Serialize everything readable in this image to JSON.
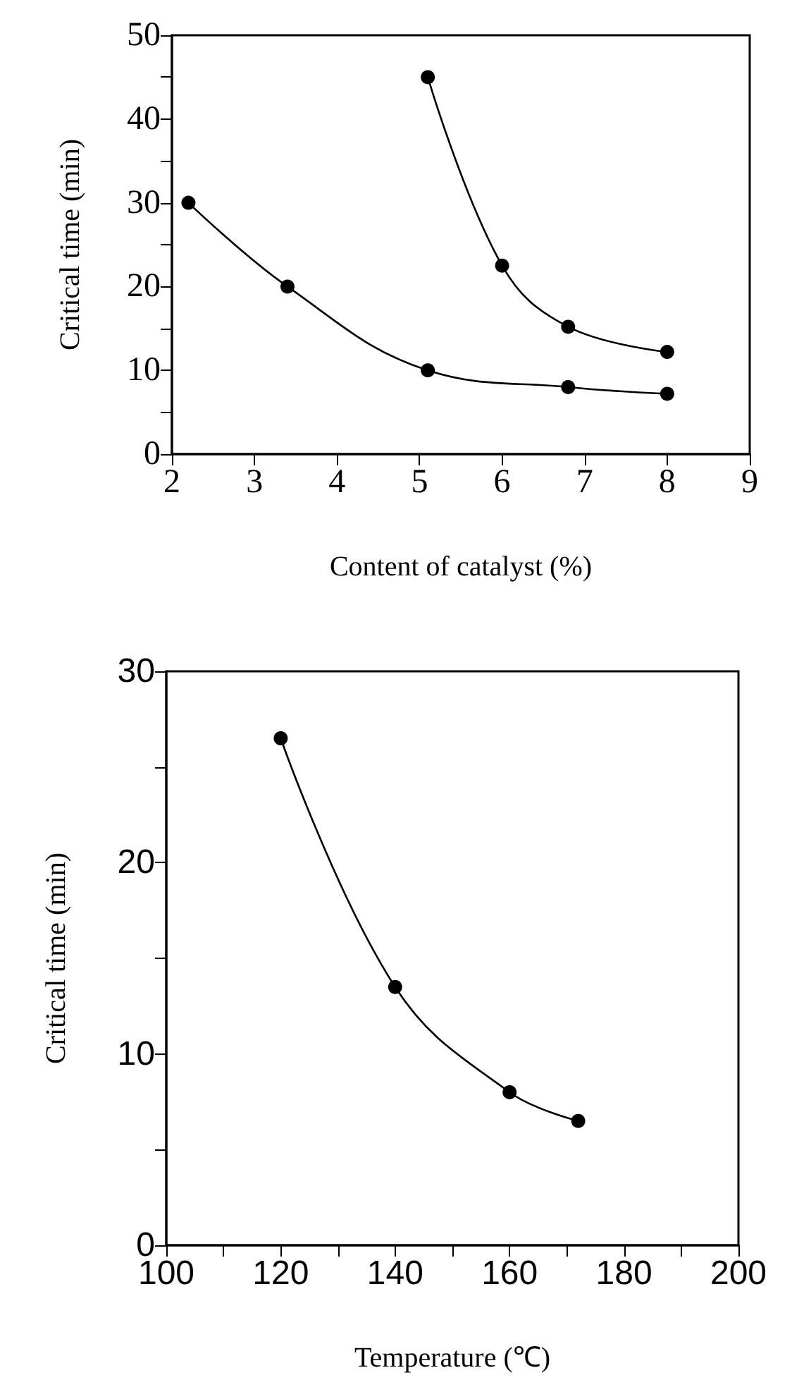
{
  "chart_data": [
    {
      "type": "line",
      "xlabel": "Content of catalyst (%)",
      "ylabel": "Critical time (min)",
      "xlim": [
        2,
        9
      ],
      "xticks": [
        2,
        3,
        4,
        5,
        6,
        7,
        8,
        9
      ],
      "ylim": [
        0,
        50
      ],
      "yticks": [
        0,
        {
          "value": 5,
          "label": null
        },
        10,
        {
          "value": 15,
          "label": null
        },
        20,
        {
          "value": 25,
          "label": null
        },
        30,
        {
          "value": 35,
          "label": null
        },
        40,
        {
          "value": 45,
          "label": null
        },
        50
      ],
      "marker": "circle",
      "line_style": "solid",
      "series": [
        {
          "color": "#000000",
          "x": [
            2.2,
            3.4,
            5.1,
            6.8,
            8
          ],
          "values": [
            30,
            20,
            10,
            8,
            7.2
          ]
        },
        {
          "color": "#000000",
          "x": [
            5.1,
            6,
            6.8,
            8
          ],
          "values": [
            45,
            22.5,
            15.2,
            12.2
          ]
        }
      ]
    },
    {
      "type": "line",
      "xlabel": "Temperature (℃)",
      "ylabel": "Critical time (min)",
      "xlim": [
        100,
        200
      ],
      "xticks": [
        100,
        {
          "value": 110,
          "label": null
        },
        120,
        {
          "value": 130,
          "label": null
        },
        140,
        {
          "value": 150,
          "label": null
        },
        160,
        {
          "value": 170,
          "label": null
        },
        180,
        {
          "value": 190,
          "label": null
        },
        200
      ],
      "ylim": [
        0,
        30
      ],
      "yticks": [
        0,
        {
          "value": 5,
          "label": null
        },
        10,
        {
          "value": 15,
          "label": null
        },
        20,
        {
          "value": 25,
          "label": null
        },
        30
      ],
      "marker": "circle",
      "line_style": "solid",
      "series": [
        {
          "color": "#000000",
          "x": [
            120,
            140,
            160,
            172
          ],
          "values": [
            26.5,
            13.5,
            8,
            6.5
          ]
        }
      ]
    }
  ]
}
